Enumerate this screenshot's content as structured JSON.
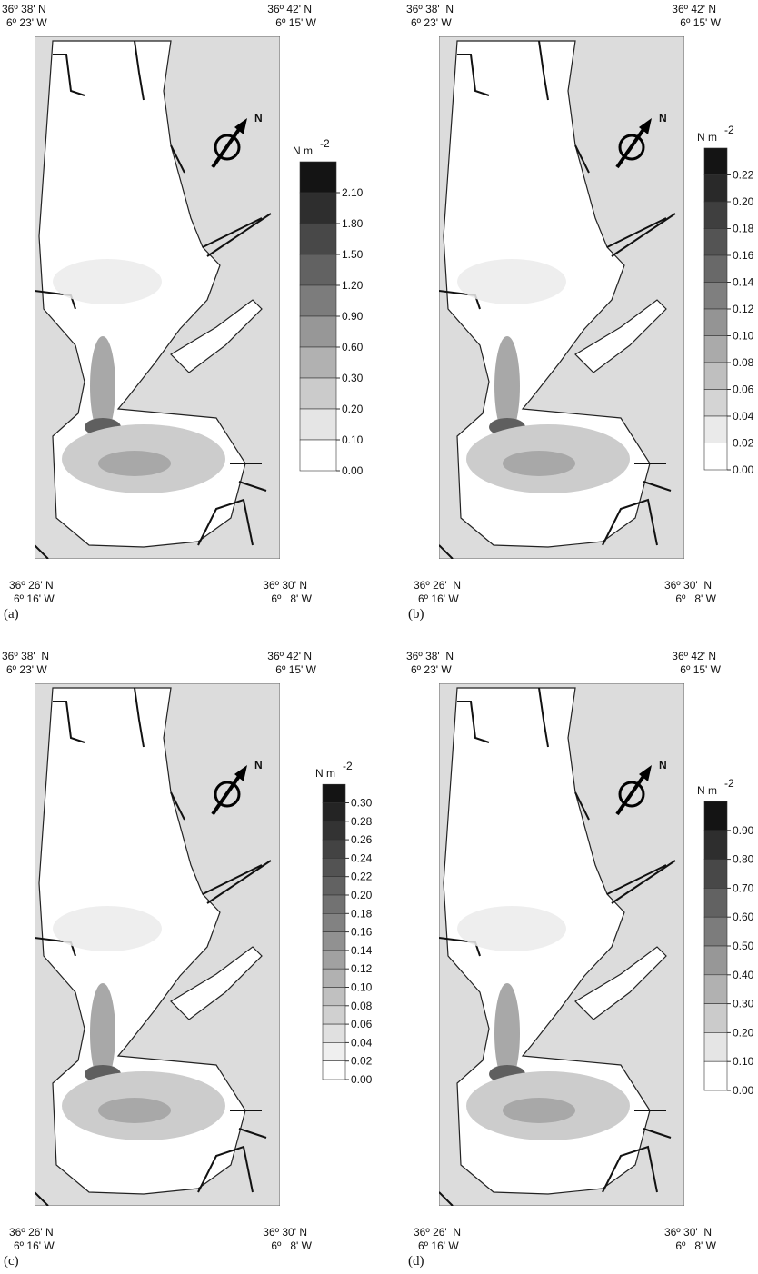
{
  "panels": [
    {
      "label": "(a)",
      "top_left": [
        "36º 38' N",
        "6º 23' W"
      ],
      "top_right": [
        "36º 42' N",
        "6º 15' W"
      ],
      "bottom_left": [
        "36º 26' N",
        "6º 16' W"
      ],
      "bottom_right": [
        "36º 30' N",
        "6º   8' W"
      ],
      "north": "N",
      "legend": {
        "unit": "N m",
        "exponent": "-2",
        "ticks": [
          "2.10",
          "1.80",
          "1.50",
          "1.20",
          "0.90",
          "0.60",
          "0.30",
          "0.20",
          "0.10",
          "0.00"
        ]
      }
    },
    {
      "label": "(b)",
      "top_left": [
        "36º 38'  N",
        "6º 23' W"
      ],
      "top_right": [
        "36º 42' N",
        "6º 15' W"
      ],
      "bottom_left": [
        "36º 26'  N",
        "6º 16' W"
      ],
      "bottom_right": [
        "36º 30'  N",
        "6º   8' W"
      ],
      "north": "N",
      "legend": {
        "unit": "N m",
        "exponent": "-2",
        "ticks": [
          "0.22",
          "0.20",
          "0.18",
          "0.16",
          "0.14",
          "0.12",
          "0.10",
          "0.08",
          "0.06",
          "0.04",
          "0.02",
          "0.00"
        ]
      }
    },
    {
      "label": "(c)",
      "top_left": [
        "36º 38'  N",
        "6º 23' W"
      ],
      "top_right": [
        "36º 42' N",
        "6º 15' W"
      ],
      "bottom_left": [
        "36º 26' N",
        "6º 16' W"
      ],
      "bottom_right": [
        "36º 30' N",
        "6º   8' W"
      ],
      "north": "N",
      "legend": {
        "unit": "N m",
        "exponent": "-2",
        "ticks": [
          "0.30",
          "0.28",
          "0.26",
          "0.24",
          "0.22",
          "0.20",
          "0.18",
          "0.16",
          "0.14",
          "0.12",
          "0.10",
          "0.08",
          "0.06",
          "0.04",
          "0.02",
          "0.00"
        ]
      }
    },
    {
      "label": "(d)",
      "top_left": [
        "36º 38'  N",
        "6º 23' W"
      ],
      "top_right": [
        "36º 42' N",
        "6º 15' W"
      ],
      "bottom_left": [
        "36º 26'  N",
        "6º 16' W"
      ],
      "bottom_right": [
        "36º 30'  N",
        "6º   8' W"
      ],
      "north": "N",
      "legend": {
        "unit": "N m",
        "exponent": "-2",
        "ticks": [
          "0.90",
          "0.80",
          "0.70",
          "0.60",
          "0.50",
          "0.40",
          "0.30",
          "0.20",
          "0.10",
          "0.00"
        ]
      }
    }
  ]
}
